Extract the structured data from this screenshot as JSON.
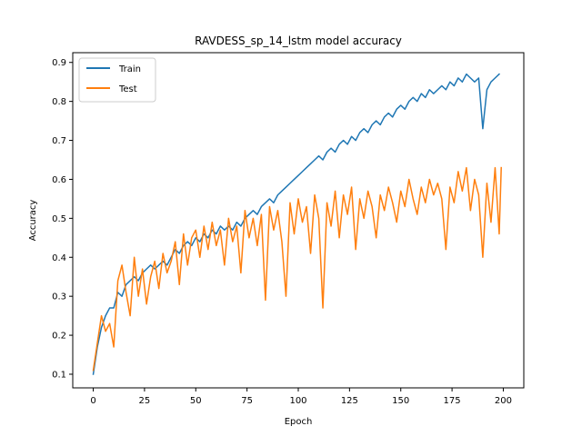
{
  "chart_data": {
    "type": "line",
    "title": "RAVDESS_sp_14_lstm model accuracy",
    "xlabel": "Epoch",
    "ylabel": "Accuracy",
    "xlim": [
      -10,
      210
    ],
    "ylim": [
      0.065,
      0.925
    ],
    "xticks": [
      0,
      25,
      50,
      75,
      100,
      125,
      150,
      175,
      200
    ],
    "yticks": [
      0.1,
      0.2,
      0.3,
      0.4,
      0.5,
      0.6,
      0.7,
      0.8,
      0.9
    ],
    "grid": false,
    "legend_position": "upper-left",
    "series": [
      {
        "name": "Train",
        "color": "#1f77b4",
        "points": [
          [
            0,
            0.1
          ],
          [
            2,
            0.17
          ],
          [
            4,
            0.22
          ],
          [
            6,
            0.25
          ],
          [
            8,
            0.27
          ],
          [
            10,
            0.27
          ],
          [
            12,
            0.31
          ],
          [
            14,
            0.3
          ],
          [
            16,
            0.33
          ],
          [
            18,
            0.34
          ],
          [
            20,
            0.35
          ],
          [
            22,
            0.34
          ],
          [
            24,
            0.36
          ],
          [
            26,
            0.37
          ],
          [
            28,
            0.38
          ],
          [
            30,
            0.37
          ],
          [
            32,
            0.38
          ],
          [
            34,
            0.39
          ],
          [
            36,
            0.38
          ],
          [
            38,
            0.4
          ],
          [
            40,
            0.42
          ],
          [
            42,
            0.41
          ],
          [
            44,
            0.43
          ],
          [
            46,
            0.44
          ],
          [
            48,
            0.43
          ],
          [
            50,
            0.45
          ],
          [
            52,
            0.44
          ],
          [
            54,
            0.46
          ],
          [
            56,
            0.45
          ],
          [
            58,
            0.47
          ],
          [
            60,
            0.46
          ],
          [
            62,
            0.48
          ],
          [
            64,
            0.47
          ],
          [
            66,
            0.48
          ],
          [
            68,
            0.47
          ],
          [
            70,
            0.49
          ],
          [
            72,
            0.48
          ],
          [
            74,
            0.5
          ],
          [
            76,
            0.51
          ],
          [
            78,
            0.52
          ],
          [
            80,
            0.51
          ],
          [
            82,
            0.53
          ],
          [
            84,
            0.54
          ],
          [
            86,
            0.55
          ],
          [
            88,
            0.54
          ],
          [
            90,
            0.56
          ],
          [
            92,
            0.57
          ],
          [
            94,
            0.58
          ],
          [
            96,
            0.59
          ],
          [
            98,
            0.6
          ],
          [
            100,
            0.61
          ],
          [
            102,
            0.62
          ],
          [
            104,
            0.63
          ],
          [
            106,
            0.64
          ],
          [
            108,
            0.65
          ],
          [
            110,
            0.66
          ],
          [
            112,
            0.65
          ],
          [
            114,
            0.67
          ],
          [
            116,
            0.68
          ],
          [
            118,
            0.67
          ],
          [
            120,
            0.69
          ],
          [
            122,
            0.7
          ],
          [
            124,
            0.69
          ],
          [
            126,
            0.71
          ],
          [
            128,
            0.7
          ],
          [
            130,
            0.72
          ],
          [
            132,
            0.73
          ],
          [
            134,
            0.72
          ],
          [
            136,
            0.74
          ],
          [
            138,
            0.75
          ],
          [
            140,
            0.74
          ],
          [
            142,
            0.76
          ],
          [
            144,
            0.77
          ],
          [
            146,
            0.76
          ],
          [
            148,
            0.78
          ],
          [
            150,
            0.79
          ],
          [
            152,
            0.78
          ],
          [
            154,
            0.8
          ],
          [
            156,
            0.81
          ],
          [
            158,
            0.8
          ],
          [
            160,
            0.82
          ],
          [
            162,
            0.81
          ],
          [
            164,
            0.83
          ],
          [
            166,
            0.82
          ],
          [
            168,
            0.83
          ],
          [
            170,
            0.84
          ],
          [
            172,
            0.83
          ],
          [
            174,
            0.85
          ],
          [
            176,
            0.84
          ],
          [
            178,
            0.86
          ],
          [
            180,
            0.85
          ],
          [
            182,
            0.87
          ],
          [
            184,
            0.86
          ],
          [
            186,
            0.85
          ],
          [
            188,
            0.86
          ],
          [
            190,
            0.73
          ],
          [
            192,
            0.83
          ],
          [
            194,
            0.85
          ],
          [
            196,
            0.86
          ],
          [
            198,
            0.87
          ]
        ]
      },
      {
        "name": "Test",
        "color": "#ff7f0e",
        "points": [
          [
            0,
            0.11
          ],
          [
            2,
            0.18
          ],
          [
            4,
            0.25
          ],
          [
            6,
            0.21
          ],
          [
            8,
            0.23
          ],
          [
            10,
            0.17
          ],
          [
            12,
            0.34
          ],
          [
            14,
            0.38
          ],
          [
            16,
            0.31
          ],
          [
            18,
            0.25
          ],
          [
            20,
            0.4
          ],
          [
            22,
            0.3
          ],
          [
            24,
            0.37
          ],
          [
            26,
            0.28
          ],
          [
            28,
            0.35
          ],
          [
            30,
            0.39
          ],
          [
            32,
            0.32
          ],
          [
            34,
            0.41
          ],
          [
            36,
            0.36
          ],
          [
            38,
            0.39
          ],
          [
            40,
            0.44
          ],
          [
            42,
            0.33
          ],
          [
            44,
            0.46
          ],
          [
            46,
            0.38
          ],
          [
            48,
            0.45
          ],
          [
            50,
            0.47
          ],
          [
            52,
            0.4
          ],
          [
            54,
            0.48
          ],
          [
            56,
            0.42
          ],
          [
            58,
            0.49
          ],
          [
            60,
            0.43
          ],
          [
            62,
            0.47
          ],
          [
            64,
            0.38
          ],
          [
            66,
            0.5
          ],
          [
            68,
            0.44
          ],
          [
            70,
            0.48
          ],
          [
            72,
            0.36
          ],
          [
            74,
            0.52
          ],
          [
            76,
            0.45
          ],
          [
            78,
            0.5
          ],
          [
            80,
            0.43
          ],
          [
            82,
            0.51
          ],
          [
            84,
            0.29
          ],
          [
            86,
            0.53
          ],
          [
            88,
            0.47
          ],
          [
            90,
            0.52
          ],
          [
            92,
            0.44
          ],
          [
            94,
            0.3
          ],
          [
            96,
            0.54
          ],
          [
            98,
            0.46
          ],
          [
            100,
            0.55
          ],
          [
            102,
            0.49
          ],
          [
            104,
            0.53
          ],
          [
            106,
            0.41
          ],
          [
            108,
            0.56
          ],
          [
            110,
            0.5
          ],
          [
            112,
            0.27
          ],
          [
            114,
            0.54
          ],
          [
            116,
            0.48
          ],
          [
            118,
            0.57
          ],
          [
            120,
            0.45
          ],
          [
            122,
            0.56
          ],
          [
            124,
            0.51
          ],
          [
            126,
            0.58
          ],
          [
            128,
            0.42
          ],
          [
            130,
            0.55
          ],
          [
            132,
            0.5
          ],
          [
            134,
            0.57
          ],
          [
            136,
            0.53
          ],
          [
            138,
            0.45
          ],
          [
            140,
            0.56
          ],
          [
            142,
            0.52
          ],
          [
            144,
            0.58
          ],
          [
            146,
            0.54
          ],
          [
            148,
            0.49
          ],
          [
            150,
            0.57
          ],
          [
            152,
            0.53
          ],
          [
            154,
            0.6
          ],
          [
            156,
            0.55
          ],
          [
            158,
            0.51
          ],
          [
            160,
            0.58
          ],
          [
            162,
            0.54
          ],
          [
            164,
            0.6
          ],
          [
            166,
            0.56
          ],
          [
            168,
            0.59
          ],
          [
            170,
            0.55
          ],
          [
            172,
            0.42
          ],
          [
            174,
            0.58
          ],
          [
            176,
            0.54
          ],
          [
            178,
            0.62
          ],
          [
            180,
            0.57
          ],
          [
            182,
            0.63
          ],
          [
            184,
            0.52
          ],
          [
            186,
            0.6
          ],
          [
            188,
            0.56
          ],
          [
            190,
            0.4
          ],
          [
            192,
            0.59
          ],
          [
            194,
            0.49
          ],
          [
            196,
            0.63
          ],
          [
            198,
            0.46
          ],
          [
            199,
            0.63
          ]
        ]
      }
    ]
  }
}
